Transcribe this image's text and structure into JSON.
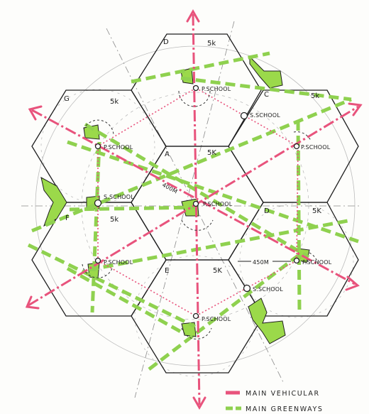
{
  "cells": [
    {
      "letter": "D",
      "pop": "5k"
    },
    {
      "letter": "C",
      "pop": "5k"
    },
    {
      "letter": "G",
      "pop": "5k"
    },
    {
      "letter": "A",
      "pop": "5K"
    },
    {
      "letter": "F",
      "pop": "5k"
    },
    {
      "letter": "D",
      "pop": "5K"
    },
    {
      "letter": "E",
      "pop": "5K"
    }
  ],
  "schools": {
    "p_school": "P.SCHOOL",
    "s_school": "S.SCHOOL"
  },
  "distances": {
    "d400": "400M",
    "d450": "450M"
  },
  "legend": {
    "vehicular": "MAIN VEHICULAR",
    "greenways": "MAIN GREENWAYS"
  },
  "colors": {
    "vehicular": "#e8537c",
    "greenway": "#8fd14f",
    "hex_line": "#222222",
    "faint_line": "#9a9a9a",
    "green_fill": "#9bd94a"
  }
}
